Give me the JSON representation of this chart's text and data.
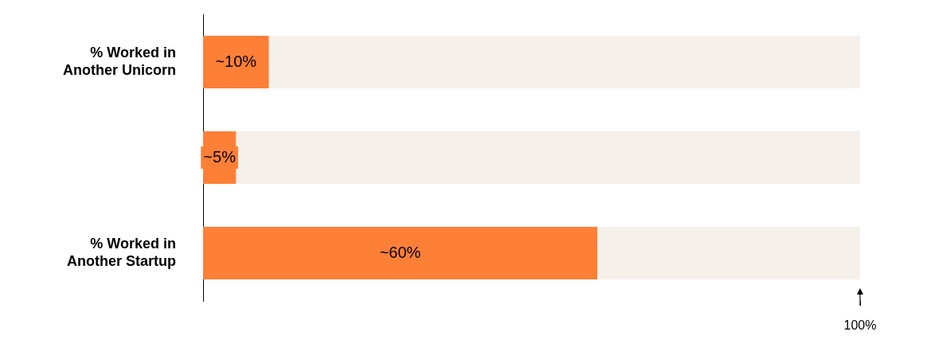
{
  "chart_data": {
    "type": "bar",
    "orientation": "horizontal",
    "categories": [
      "% Worked in\nAnother Unicorn",
      null,
      "% Worked in\nAnother Startup"
    ],
    "values": [
      10,
      5,
      60
    ],
    "value_labels": [
      "~10%",
      "~5%",
      "~60%"
    ],
    "color": "#fe7f36",
    "xlim": [
      0,
      100
    ],
    "xticks": [
      {
        "value": 100,
        "label": "100%"
      }
    ],
    "grid": false,
    "legend": false
  }
}
